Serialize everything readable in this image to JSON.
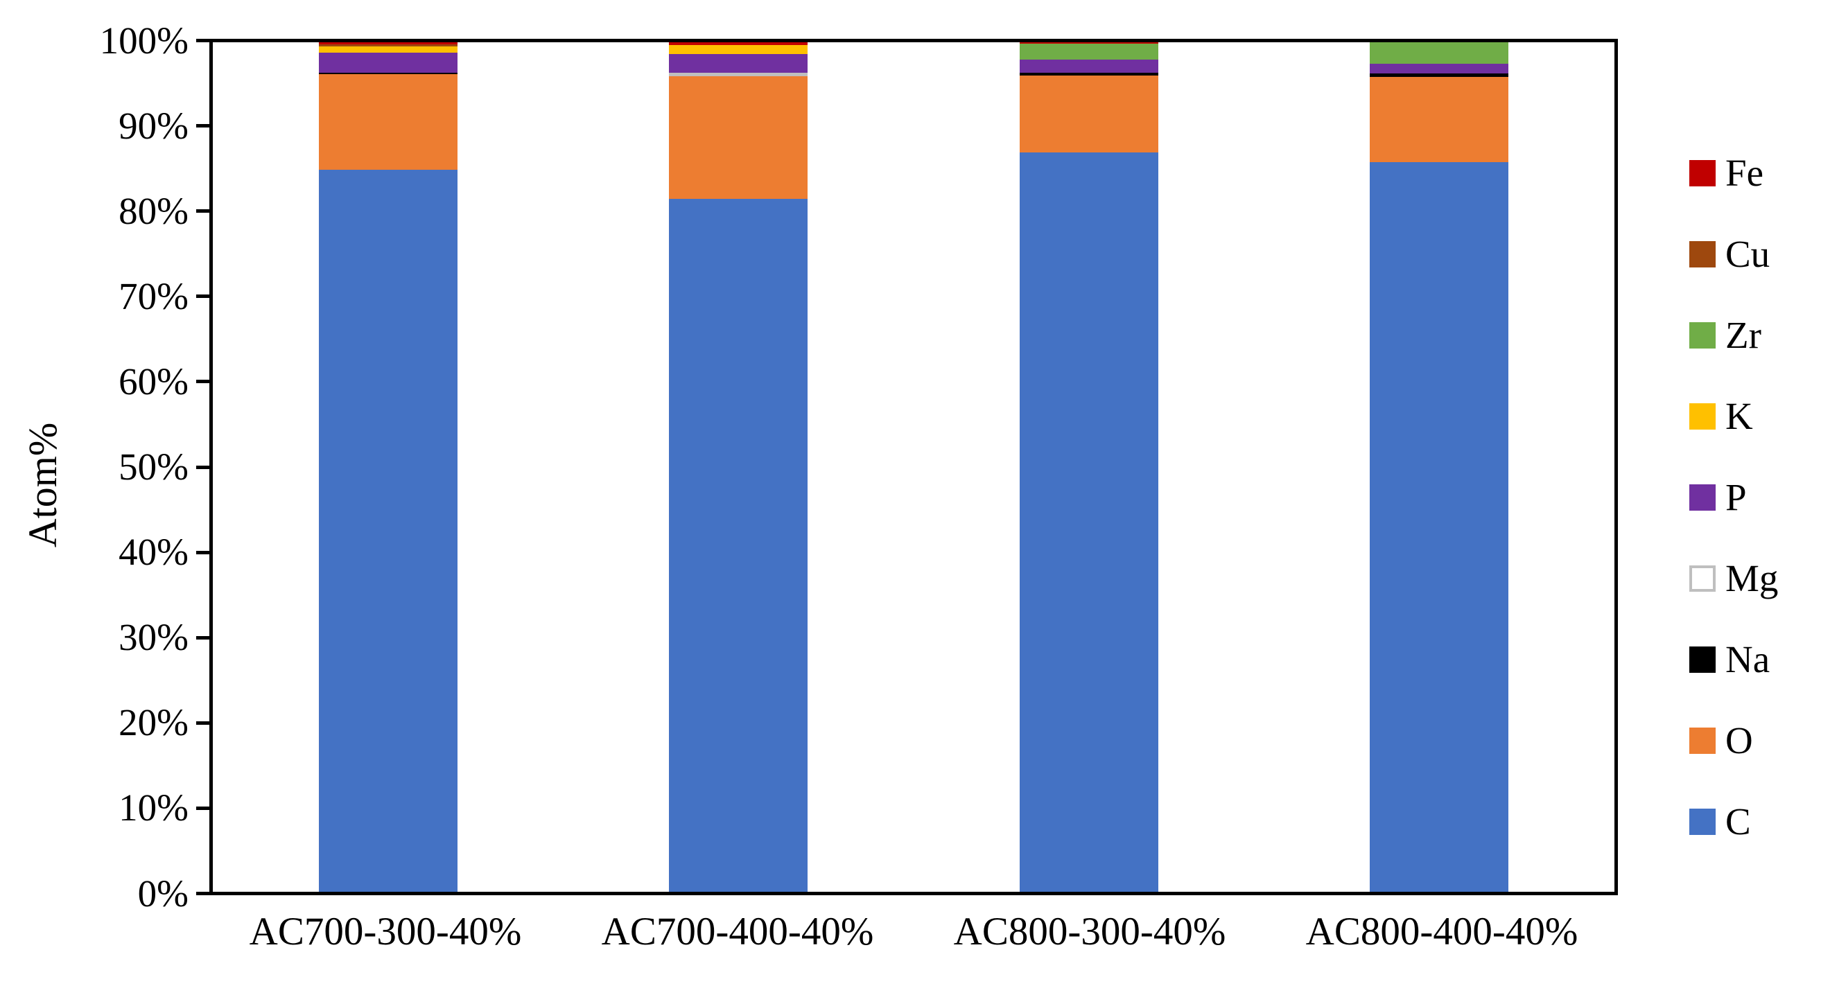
{
  "chart_data": {
    "type": "bar",
    "variant": "stacked-100-percent-column",
    "title": "",
    "xlabel": "",
    "ylabel": "Atom%",
    "ylim": [
      0,
      100
    ],
    "ytick_step": 10,
    "yticks": [
      "0%",
      "10%",
      "20%",
      "30%",
      "40%",
      "50%",
      "60%",
      "70%",
      "80%",
      "90%",
      "100%"
    ],
    "grid": false,
    "legend_position": "right",
    "legend_order_top_to_bottom": [
      "Fe",
      "Cu",
      "Zr",
      "K",
      "P",
      "Mg",
      "Na",
      "O",
      "C"
    ],
    "categories": [
      "AC700-300-40%",
      "AC700-400-40%",
      "AC800-300-40%",
      "AC800-400-40%"
    ],
    "series": [
      {
        "name": "C",
        "color": "#4472C4",
        "values": [
          85.0,
          81.6,
          87.0,
          85.9
        ]
      },
      {
        "name": "O",
        "color": "#ED7D31",
        "values": [
          11.25,
          14.4,
          9.1,
          10.0
        ]
      },
      {
        "name": "Na",
        "color": "#000000",
        "values": [
          0.2,
          0.0,
          0.35,
          0.45
        ]
      },
      {
        "name": "Mg",
        "color": "#FFFFFF",
        "border_color": "#BFBFBF",
        "values": [
          0.0,
          0.4,
          0.0,
          0.0
        ]
      },
      {
        "name": "P",
        "color": "#7030A0",
        "values": [
          2.3,
          2.2,
          1.55,
          1.1
        ]
      },
      {
        "name": "K",
        "color": "#FFC000",
        "values": [
          0.8,
          1.05,
          0.0,
          0.0
        ]
      },
      {
        "name": "Zr",
        "color": "#70AD47",
        "values": [
          0.0,
          0.0,
          1.8,
          2.55
        ]
      },
      {
        "name": "Cu",
        "color": "#9E480E",
        "values": [
          0.25,
          0.0,
          0.0,
          0.0
        ]
      },
      {
        "name": "Fe",
        "color": "#C00000",
        "values": [
          0.2,
          0.35,
          0.2,
          0.0
        ]
      }
    ],
    "axis_color": "#000000",
    "background_color": "#FFFFFF"
  }
}
